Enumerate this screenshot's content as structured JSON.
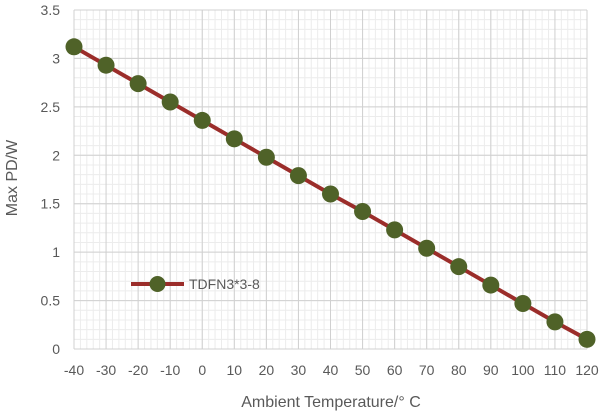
{
  "chart_data": {
    "type": "line",
    "xlabel": "Ambient Temperature/° C",
    "ylabel": "Max PD/W",
    "xlim": [
      -40,
      120
    ],
    "ylim": [
      0,
      3.5
    ],
    "x_ticks": [
      "-40",
      "-30",
      "-20",
      "-10",
      "0",
      "10",
      "20",
      "30",
      "40",
      "50",
      "60",
      "70",
      "80",
      "90",
      "100",
      "110",
      "120"
    ],
    "y_ticks": [
      "0",
      "0.5",
      "1",
      "1.5",
      "2",
      "2.5",
      "3",
      "3.5"
    ],
    "grid": true,
    "legend_position": "inside-bottom-left",
    "series": [
      {
        "name": "TDFN3*3-8",
        "line_color": "#9b2d2a",
        "marker_color": "#4f6228",
        "x": [
          -40,
          -30,
          -20,
          -10,
          0,
          10,
          20,
          30,
          40,
          50,
          60,
          70,
          80,
          90,
          100,
          110,
          120
        ],
        "values": [
          3.12,
          2.93,
          2.74,
          2.55,
          2.36,
          2.17,
          1.98,
          1.79,
          1.6,
          1.42,
          1.23,
          1.04,
          0.85,
          0.66,
          0.47,
          0.28,
          0.1
        ]
      }
    ]
  }
}
